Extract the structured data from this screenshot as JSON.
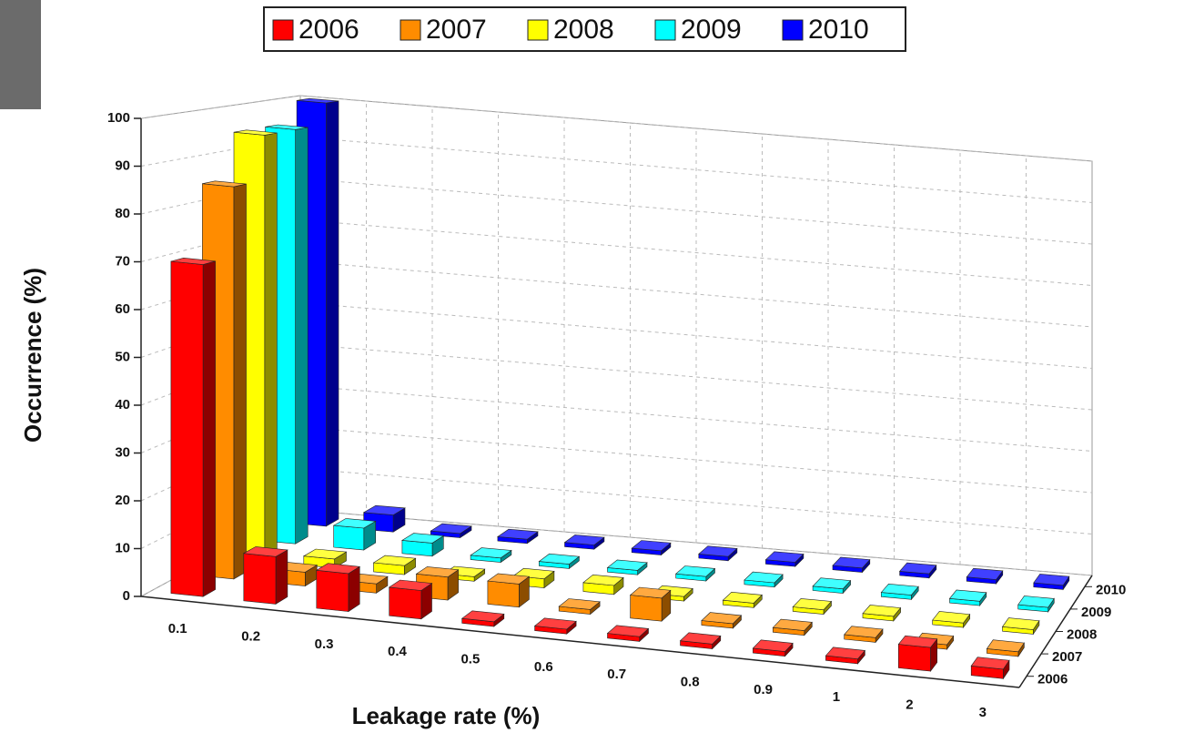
{
  "chart_data": {
    "type": "bar3d",
    "categories": [
      "0.1",
      "0.2",
      "0.3",
      "0.4",
      "0.5",
      "0.6",
      "0.7",
      "0.8",
      "0.9",
      "1",
      "2",
      "3"
    ],
    "series": [
      {
        "name": "2006",
        "color": "#ff0000",
        "values": [
          70,
          10,
          8,
          6,
          1,
          1,
          1,
          1,
          1,
          1,
          5,
          2
        ]
      },
      {
        "name": "2007",
        "color": "#ff8c00",
        "values": [
          85,
          3,
          2,
          5,
          5,
          1,
          5,
          1,
          1,
          1,
          1,
          1
        ]
      },
      {
        "name": "2008",
        "color": "#ffff00",
        "values": [
          95,
          2,
          2,
          1,
          2,
          2,
          1,
          1,
          1,
          1,
          1,
          1
        ]
      },
      {
        "name": "2009",
        "color": "#00ffff",
        "values": [
          95,
          5,
          3,
          1,
          1,
          1,
          1,
          1,
          1,
          1,
          1,
          1
        ]
      },
      {
        "name": "2010",
        "color": "#0000ff",
        "values": [
          100,
          4,
          1,
          1,
          1,
          1,
          1,
          1,
          1,
          1,
          1,
          1
        ]
      }
    ],
    "ylim": [
      0,
      100
    ],
    "yticks": [
      0,
      10,
      20,
      30,
      40,
      50,
      60,
      70,
      80,
      90,
      100
    ],
    "xlabel": "Leakage rate (%)",
    "ylabel": "Occurrence (%)",
    "grid": true,
    "legend": "top"
  }
}
